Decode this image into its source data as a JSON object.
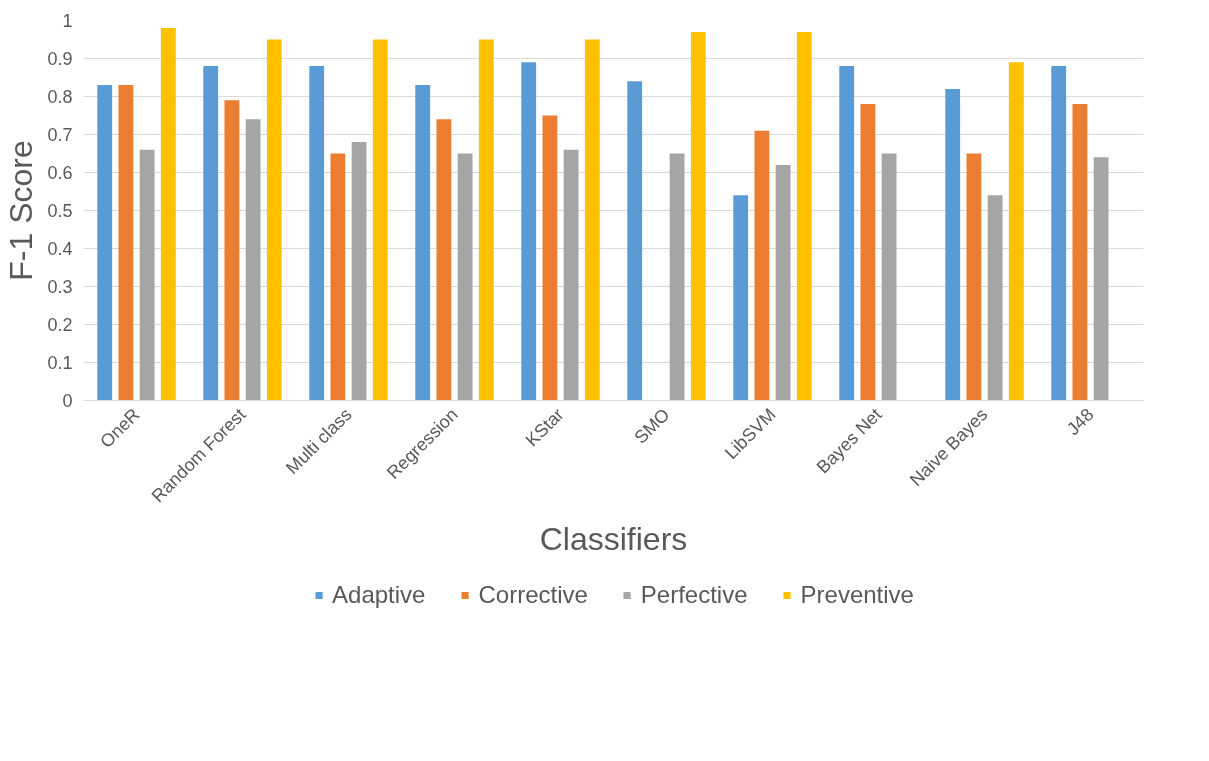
{
  "chart_data": {
    "type": "bar",
    "xlabel": "Classifiers",
    "ylabel": "F-1 Score",
    "categories": [
      "OneR",
      "Random Forest",
      "Multi class",
      "Regression",
      "KStar",
      "SMO",
      "LibSVM",
      "Bayes Net",
      "Naive Bayes",
      "J48"
    ],
    "series": [
      {
        "name": "Adaptive",
        "color": "#5b9bd5",
        "values": [
          0.83,
          0.88,
          0.88,
          0.83,
          0.89,
          0.84,
          0.54,
          0.88,
          0.82,
          0.88
        ]
      },
      {
        "name": "Corrective",
        "color": "#ed7d31",
        "values": [
          0.83,
          0.79,
          0.65,
          0.74,
          0.75,
          null,
          0.71,
          0.78,
          0.65,
          0.78
        ]
      },
      {
        "name": "Perfective",
        "color": "#a5a5a5",
        "values": [
          0.66,
          0.74,
          0.68,
          0.65,
          0.66,
          0.65,
          0.62,
          0.65,
          0.54,
          0.64
        ]
      },
      {
        "name": "Preventive",
        "color": "#ffc000",
        "values": [
          0.98,
          0.95,
          0.95,
          0.95,
          0.95,
          0.97,
          0.97,
          null,
          0.89,
          null
        ]
      }
    ],
    "ylim": [
      0,
      1
    ],
    "yticks": [
      0,
      0.1,
      0.2,
      0.3,
      0.4,
      0.5,
      0.6,
      0.7,
      0.8,
      0.9,
      1
    ],
    "grid": "y",
    "legend": "bottom"
  }
}
